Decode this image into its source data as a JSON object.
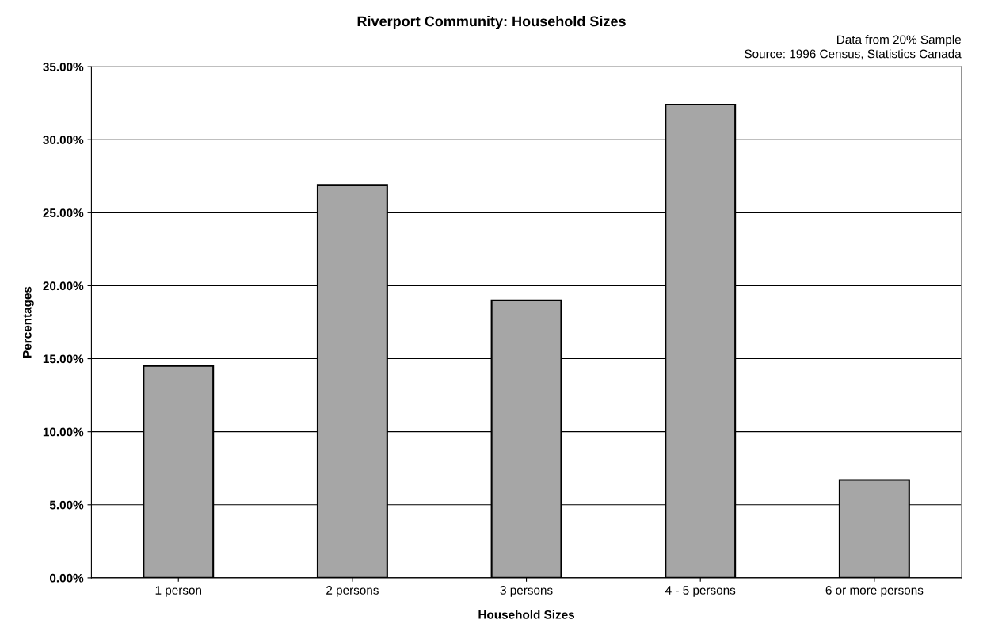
{
  "chart_data": {
    "type": "bar",
    "title": "Riverport Community: Household Sizes",
    "xlabel": "Household Sizes",
    "ylabel": "Percentages",
    "annotations": [
      "Data from 20% Sample",
      "Source: 1996 Census, Statistics Canada"
    ],
    "categories": [
      "1 person",
      "2 persons",
      "3 persons",
      "4 - 5 persons",
      "6 or more persons"
    ],
    "values": [
      14.5,
      26.9,
      19.0,
      32.4,
      6.7
    ],
    "color": "#a6a6a6",
    "ylim": [
      0,
      35
    ],
    "yticks": [
      {
        "value": 0,
        "label": "0.00%"
      },
      {
        "value": 5,
        "label": "5.00%"
      },
      {
        "value": 10,
        "label": "10.00%"
      },
      {
        "value": 15,
        "label": "15.00%"
      },
      {
        "value": 20,
        "label": "20.00%"
      },
      {
        "value": 25,
        "label": "25.00%"
      },
      {
        "value": 30,
        "label": "30.00%"
      },
      {
        "value": 35,
        "label": "35.00%"
      }
    ],
    "grid": "y",
    "legend": false
  }
}
